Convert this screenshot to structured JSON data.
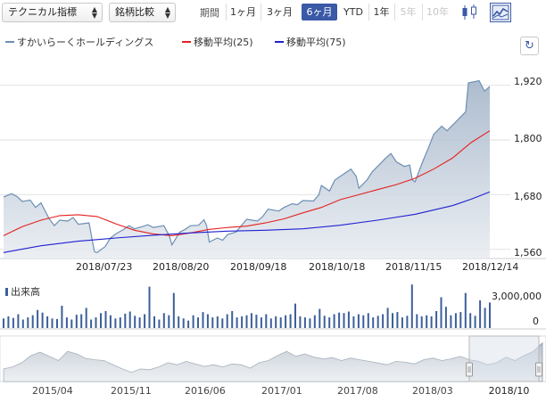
{
  "toolbar": {
    "technical_label": "テクニカル指標",
    "compare_label": "銘柄比較",
    "period_label": "期間",
    "periods": [
      "1ヶ月",
      "3ヶ月",
      "6ヶ月",
      "YTD",
      "1年",
      "5年",
      "10年"
    ],
    "active_period": "6ヶ月",
    "disabled_periods": [
      "5年",
      "10年"
    ],
    "chart_type_icons": [
      "candlestick-icon",
      "line-area-icon"
    ],
    "active_chart_type": "line-area-icon"
  },
  "legend": {
    "series": [
      {
        "label": "すかいらーくホールディングス",
        "color": "#6d8fb4"
      },
      {
        "label": "移動平均(25)",
        "color": "#e52020"
      },
      {
        "label": "移動平均(75)",
        "color": "#2020d0"
      }
    ]
  },
  "refresh_icon": "refresh-icon",
  "colors": {
    "price_line": "#6d8fb4",
    "ma25": "#e52020",
    "ma75": "#2020d0",
    "volume": "#3c5f9a",
    "accent": "#3a59a6"
  },
  "chart_data": {
    "type": "line",
    "y_ticks": [
      "1,920",
      "1,800",
      "1,680",
      "1,560"
    ],
    "ylim": [
      1540,
      1970
    ],
    "x_labels": [
      "2018/07/23",
      "2018/08/20",
      "2018/09/18",
      "2018/10/18",
      "2018/11/15",
      "2018/12/14"
    ],
    "x_start": "2018/06/15",
    "x_end": "2018/12/14",
    "series": [
      {
        "name": "すかいらーくホールディングス",
        "points": [
          [
            "2018/06/15",
            1675
          ],
          [
            "2018/06/18",
            1682
          ],
          [
            "2018/06/20",
            1676
          ],
          [
            "2018/06/22",
            1665
          ],
          [
            "2018/06/25",
            1668
          ],
          [
            "2018/06/27",
            1652
          ],
          [
            "2018/06/29",
            1662
          ],
          [
            "2018/07/02",
            1628
          ],
          [
            "2018/07/04",
            1612
          ],
          [
            "2018/07/06",
            1624
          ],
          [
            "2018/07/09",
            1622
          ],
          [
            "2018/07/11",
            1630
          ],
          [
            "2018/07/13",
            1615
          ],
          [
            "2018/07/17",
            1618
          ],
          [
            "2018/07/19",
            1555
          ],
          [
            "2018/07/20",
            1553
          ],
          [
            "2018/07/23",
            1566
          ],
          [
            "2018/07/25",
            1585
          ],
          [
            "2018/07/27",
            1594
          ],
          [
            "2018/07/30",
            1604
          ],
          [
            "2018/08/01",
            1612
          ],
          [
            "2018/08/03",
            1605
          ],
          [
            "2018/08/06",
            1610
          ],
          [
            "2018/08/08",
            1614
          ],
          [
            "2018/08/10",
            1608
          ],
          [
            "2018/08/14",
            1612
          ],
          [
            "2018/08/16",
            1590
          ],
          [
            "2018/08/17",
            1570
          ],
          [
            "2018/08/20",
            1598
          ],
          [
            "2018/08/22",
            1604
          ],
          [
            "2018/08/24",
            1612
          ],
          [
            "2018/08/27",
            1613
          ],
          [
            "2018/08/29",
            1625
          ],
          [
            "2018/08/30",
            1612
          ],
          [
            "2018/08/31",
            1576
          ],
          [
            "2018/09/03",
            1585
          ],
          [
            "2018/09/05",
            1580
          ],
          [
            "2018/09/07",
            1593
          ],
          [
            "2018/09/10",
            1598
          ],
          [
            "2018/09/12",
            1612
          ],
          [
            "2018/09/14",
            1626
          ],
          [
            "2018/09/18",
            1622
          ],
          [
            "2018/09/20",
            1632
          ],
          [
            "2018/09/22",
            1648
          ],
          [
            "2018/09/26",
            1644
          ],
          [
            "2018/09/28",
            1652
          ],
          [
            "2018/10/01",
            1660
          ],
          [
            "2018/10/03",
            1658
          ],
          [
            "2018/10/05",
            1667
          ],
          [
            "2018/10/09",
            1666
          ],
          [
            "2018/10/11",
            1680
          ],
          [
            "2018/10/12",
            1700
          ],
          [
            "2018/10/15",
            1688
          ],
          [
            "2018/10/17",
            1712
          ],
          [
            "2018/10/19",
            1720
          ],
          [
            "2018/10/23",
            1736
          ],
          [
            "2018/10/25",
            1720
          ],
          [
            "2018/10/26",
            1694
          ],
          [
            "2018/10/29",
            1712
          ],
          [
            "2018/10/31",
            1730
          ],
          [
            "2018/11/02",
            1742
          ],
          [
            "2018/11/05",
            1760
          ],
          [
            "2018/11/07",
            1770
          ],
          [
            "2018/11/09",
            1752
          ],
          [
            "2018/11/12",
            1742
          ],
          [
            "2018/11/14",
            1745
          ],
          [
            "2018/11/15",
            1712
          ],
          [
            "2018/11/16",
            1708
          ],
          [
            "2018/11/19",
            1754
          ],
          [
            "2018/11/21",
            1782
          ],
          [
            "2018/11/23",
            1812
          ],
          [
            "2018/11/26",
            1830
          ],
          [
            "2018/11/28",
            1820
          ],
          [
            "2018/11/30",
            1832
          ],
          [
            "2018/12/03",
            1850
          ],
          [
            "2018/12/05",
            1862
          ],
          [
            "2018/12/06",
            1925
          ],
          [
            "2018/12/10",
            1930
          ],
          [
            "2018/12/12",
            1907
          ],
          [
            "2018/12/14",
            1917
          ]
        ]
      },
      {
        "name": "移動平均(25)",
        "points": [
          [
            "2018/06/15",
            1590
          ],
          [
            "2018/06/22",
            1610
          ],
          [
            "2018/06/29",
            1624
          ],
          [
            "2018/07/06",
            1634
          ],
          [
            "2018/07/13",
            1636
          ],
          [
            "2018/07/20",
            1632
          ],
          [
            "2018/07/27",
            1616
          ],
          [
            "2018/08/03",
            1602
          ],
          [
            "2018/08/10",
            1594
          ],
          [
            "2018/08/17",
            1590
          ],
          [
            "2018/08/24",
            1596
          ],
          [
            "2018/08/31",
            1604
          ],
          [
            "2018/09/07",
            1608
          ],
          [
            "2018/09/14",
            1611
          ],
          [
            "2018/09/21",
            1618
          ],
          [
            "2018/09/28",
            1627
          ],
          [
            "2018/10/05",
            1640
          ],
          [
            "2018/10/12",
            1652
          ],
          [
            "2018/10/19",
            1669
          ],
          [
            "2018/10/26",
            1680
          ],
          [
            "2018/11/02",
            1691
          ],
          [
            "2018/11/09",
            1702
          ],
          [
            "2018/11/16",
            1716
          ],
          [
            "2018/11/23",
            1736
          ],
          [
            "2018/11/30",
            1760
          ],
          [
            "2018/12/07",
            1794
          ],
          [
            "2018/12/14",
            1820
          ]
        ]
      },
      {
        "name": "移動平均(75)",
        "points": [
          [
            "2018/06/15",
            1553
          ],
          [
            "2018/06/29",
            1568
          ],
          [
            "2018/07/13",
            1578
          ],
          [
            "2018/07/27",
            1585
          ],
          [
            "2018/08/10",
            1591
          ],
          [
            "2018/08/24",
            1596
          ],
          [
            "2018/09/07",
            1600
          ],
          [
            "2018/09/21",
            1602
          ],
          [
            "2018/10/05",
            1605
          ],
          [
            "2018/10/19",
            1613
          ],
          [
            "2018/11/02",
            1624
          ],
          [
            "2018/11/16",
            1637
          ],
          [
            "2018/11/30",
            1656
          ],
          [
            "2018/12/07",
            1670
          ],
          [
            "2018/12/14",
            1686
          ]
        ]
      }
    ]
  },
  "volume": {
    "title": "出来高",
    "y_ticks": [
      "3,000,000",
      "0"
    ],
    "ylim": [
      0,
      4200000
    ],
    "values": [
      900000,
      1100000,
      950000,
      1300000,
      800000,
      1000000,
      1200000,
      1700000,
      1450000,
      1100000,
      900000,
      850000,
      2100000,
      1000000,
      800000,
      1250000,
      1300000,
      1900000,
      800000,
      1000000,
      1400000,
      1600000,
      1200000,
      900000,
      1000000,
      1350000,
      1550000,
      1150000,
      1000000,
      1300000,
      3900000,
      1100000,
      800000,
      1400000,
      1200000,
      3300000,
      1100000,
      900000,
      700000,
      1200000,
      1000000,
      1500000,
      1300000,
      1000000,
      1100000,
      900000,
      1300000,
      1600000,
      1000000,
      1100000,
      1200000,
      1400000,
      1250000,
      1000000,
      1300000,
      900000,
      1100000,
      1000000,
      1200000,
      1300000,
      2300000,
      1100000,
      1000000,
      900000,
      1200000,
      1800000,
      1150000,
      1000000,
      1300000,
      1450000,
      1400000,
      1550000,
      1100000,
      1300000,
      1200000,
      1400000,
      1000000,
      1150000,
      1300000,
      1900000,
      1400000,
      1500000,
      1000000,
      1150000,
      4100000,
      1300000,
      1100000,
      1200000,
      1100000,
      1600000,
      2900000,
      2000000,
      1200000,
      1400000,
      1500000,
      3300000,
      1400000,
      1150000,
      2600000,
      1900000,
      2400000
    ]
  },
  "navigator": {
    "labels": [
      "2015/04",
      "2015/11",
      "2016/06",
      "2017/01",
      "2017/08",
      "2018/03"
    ],
    "selection_label": "2018/10",
    "levels": [
      0.3,
      0.35,
      0.45,
      0.62,
      0.7,
      0.6,
      0.5,
      0.72,
      0.66,
      0.55,
      0.52,
      0.5,
      0.4,
      0.3,
      0.22,
      0.3,
      0.28,
      0.35,
      0.45,
      0.4,
      0.48,
      0.42,
      0.36,
      0.4,
      0.35,
      0.42,
      0.4,
      0.32,
      0.45,
      0.5,
      0.62,
      0.72,
      0.6,
      0.66,
      0.58,
      0.54,
      0.57,
      0.5,
      0.56,
      0.52,
      0.48,
      0.44,
      0.4,
      0.48,
      0.46,
      0.42,
      0.52,
      0.56,
      0.5,
      0.54,
      0.6,
      0.52,
      0.48,
      0.4,
      0.45,
      0.58,
      0.5,
      0.62,
      0.72,
      0.92
    ]
  }
}
